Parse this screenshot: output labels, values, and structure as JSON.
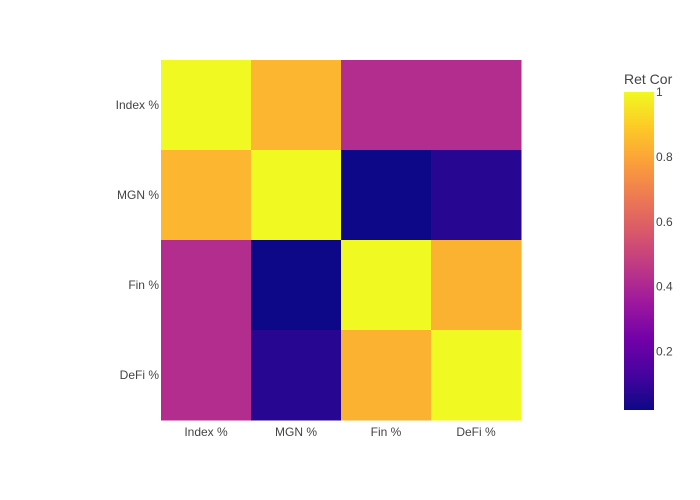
{
  "chart_data": {
    "type": "heatmap",
    "x_categories": [
      "Index %",
      "MGN %",
      "Fin %",
      "DeFi %"
    ],
    "y_categories": [
      "Index %",
      "MGN %",
      "Fin %",
      "DeFi %"
    ],
    "z": [
      [
        1.0,
        0.84,
        0.42,
        0.42
      ],
      [
        0.84,
        1.0,
        0.02,
        0.07
      ],
      [
        0.42,
        0.02,
        1.0,
        0.83
      ],
      [
        0.42,
        0.07,
        0.83,
        1.0
      ]
    ],
    "zrange": [
      0.02,
      1.0
    ],
    "colorbar": {
      "title": "Ret Cor",
      "ticks": [
        0.2,
        0.4,
        0.6,
        0.8,
        1
      ],
      "tick_labels": [
        "0.2",
        "0.4",
        "0.6",
        "0.8",
        "1"
      ]
    },
    "colorscale": [
      "#0d0887",
      "#46039f",
      "#7201a8",
      "#9c179e",
      "#bd3786",
      "#d8576b",
      "#ed7953",
      "#fb9f3a",
      "#fdca26",
      "#f0f921"
    ]
  }
}
